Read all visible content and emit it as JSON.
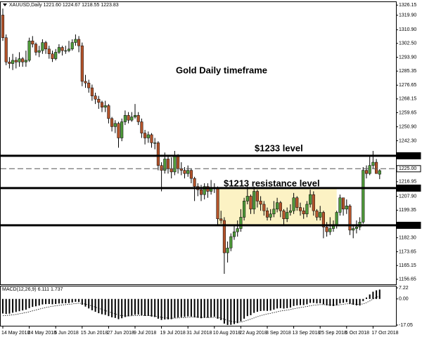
{
  "chart_data": [
    {
      "type": "candlestick",
      "title": "XAUUSD,Daily  1221.60 1224.67 1218.55 1223.83",
      "up_color": "#4f9a3a",
      "down_color": "#b4532a",
      "ylim": [
        1153.5,
        1328
      ],
      "yticks": [
        {
          "value": 1326.15,
          "label": "1326.15"
        },
        {
          "value": 1319.9,
          "label": "1319.90"
        },
        {
          "value": 1310.9,
          "label": "1310.90"
        },
        {
          "value": 1302.5,
          "label": "1302.50"
        },
        {
          "value": 1293.9,
          "label": "1293.90"
        },
        {
          "value": 1285.35,
          "label": "1285.35"
        },
        {
          "value": 1276.65,
          "label": "1276.65"
        },
        {
          "value": 1268.15,
          "label": "1268.15"
        },
        {
          "value": 1259.65,
          "label": "1259.65"
        },
        {
          "value": 1250.9,
          "label": "1250.90"
        },
        {
          "value": 1242.3,
          "label": "1242.30"
        },
        {
          "value": 1216.95,
          "label": "1216.95"
        },
        {
          "value": 1207.9,
          "label": "1207.90"
        },
        {
          "value": 1199.35,
          "label": "1199.35"
        },
        {
          "value": 1182.3,
          "label": "1182.30"
        },
        {
          "value": 1173.65,
          "label": "1173.65"
        },
        {
          "value": 1165.15,
          "label": "1165.15"
        },
        {
          "value": 1156.65,
          "label": "1156.65"
        }
      ],
      "hlines": [
        {
          "value": 1233,
          "label": "1233.00",
          "style": "solid"
        },
        {
          "value": 1225,
          "label": "1225.00",
          "style": "dashed"
        },
        {
          "value": 1213,
          "label": "1213.00",
          "style": "solid"
        },
        {
          "value": 1190,
          "label": "1190.00",
          "style": "solid"
        }
      ],
      "annotations": [
        "Gold Daily timeframe",
        "$1233 level",
        "$1213 resistance level"
      ],
      "categories": [
        "14 May 2018",
        null,
        null,
        null,
        null,
        null,
        null,
        null,
        "24 May 2018",
        null,
        null,
        null,
        null,
        null,
        null,
        null,
        "5 Jun 2018",
        null,
        null,
        null,
        null,
        null,
        null,
        null,
        "15 Jun 2018",
        null,
        null,
        null,
        null,
        null,
        null,
        null,
        "27 Jun 2018",
        null,
        null,
        null,
        null,
        null,
        null,
        null,
        "9 Jul 2018",
        null,
        null,
        null,
        null,
        null,
        null,
        null,
        "19 Jul 2018",
        null,
        null,
        null,
        null,
        null,
        null,
        null,
        "31 Jul 2018",
        null,
        null,
        null,
        null,
        null,
        null,
        null,
        "10 Aug 2018",
        null,
        null,
        null,
        null,
        null,
        null,
        null,
        "22 Aug 2018",
        null,
        null,
        null,
        null,
        null,
        null,
        null,
        "3 Sep 2018",
        null,
        null,
        null,
        null,
        null,
        null,
        null,
        "13 Sep 2018",
        null,
        null,
        null,
        null,
        null,
        null,
        null,
        "25 Sep 2018",
        null,
        null,
        null,
        null,
        null,
        null,
        null,
        "5 Oct 2018",
        null,
        null,
        null,
        null,
        null,
        null,
        null,
        "17 Oct 2018",
        null,
        null
      ],
      "open": [
        1320,
        1306,
        1291,
        1290,
        1292,
        1291,
        1293,
        1291,
        1292,
        1304,
        1302,
        1297,
        1298,
        1303,
        1299,
        1296,
        1293,
        1297,
        1300,
        1298,
        1298,
        1299,
        1303,
        1305,
        1301,
        1279,
        1278,
        1275,
        1270,
        1268,
        1266,
        1263,
        1264,
        1256,
        1251,
        1253,
        1244,
        1254,
        1258,
        1255,
        1257,
        1258,
        1254,
        1247,
        1244,
        1246,
        1241,
        1241,
        1227,
        1224,
        1231,
        1225,
        1223,
        1233,
        1225,
        1224,
        1222,
        1224,
        1219,
        1214,
        1212,
        1209,
        1214,
        1211,
        1213,
        1213,
        1194,
        1193,
        1173,
        1176,
        1183,
        1186,
        1188,
        1195,
        1205,
        1208,
        1200,
        1211,
        1205,
        1203,
        1199,
        1195,
        1197,
        1200,
        1204,
        1199,
        1194,
        1198,
        1199,
        1207,
        1201,
        1199,
        1197,
        1203,
        1209,
        1199,
        1195,
        1198,
        1189,
        1186,
        1188,
        1190,
        1198,
        1207,
        1200,
        1202,
        1187,
        1188,
        1189,
        1192,
        1224,
        1222,
        1227,
        1229,
        1221.6
      ],
      "high": [
        1324,
        1308,
        1294,
        1296,
        1294,
        1297,
        1294,
        1298,
        1306,
        1307,
        1303,
        1301,
        1305,
        1304,
        1301,
        1298,
        1299,
        1302,
        1301,
        1301,
        1304,
        1305,
        1308,
        1307,
        1303,
        1283,
        1280,
        1277,
        1272,
        1270,
        1267,
        1267,
        1265,
        1257,
        1255,
        1254,
        1256,
        1261,
        1260,
        1260,
        1265,
        1260,
        1256,
        1249,
        1248,
        1247,
        1244,
        1242,
        1229,
        1235,
        1233,
        1232,
        1236,
        1234,
        1229,
        1226,
        1227,
        1225,
        1220,
        1216,
        1215,
        1216,
        1216,
        1218,
        1216,
        1214,
        1199,
        1195,
        1180,
        1185,
        1190,
        1193,
        1200,
        1207,
        1214,
        1209,
        1214,
        1212,
        1208,
        1205,
        1201,
        1200,
        1205,
        1207,
        1205,
        1200,
        1201,
        1203,
        1210,
        1208,
        1204,
        1201,
        1205,
        1212,
        1211,
        1200,
        1202,
        1199,
        1192,
        1195,
        1193,
        1199,
        1209,
        1207,
        1206,
        1203,
        1190,
        1193,
        1195,
        1226,
        1227,
        1233,
        1236,
        1231,
        1224.67
      ],
      "low": [
        1304,
        1289,
        1287,
        1286,
        1287,
        1288,
        1288,
        1288,
        1291,
        1300,
        1295,
        1294,
        1296,
        1296,
        1293,
        1291,
        1292,
        1296,
        1295,
        1296,
        1297,
        1298,
        1301,
        1297,
        1276,
        1275,
        1272,
        1267,
        1265,
        1262,
        1260,
        1260,
        1253,
        1248,
        1247,
        1238,
        1242,
        1252,
        1253,
        1254,
        1256,
        1252,
        1244,
        1240,
        1241,
        1238,
        1237,
        1224,
        1211,
        1222,
        1222,
        1219,
        1221,
        1222,
        1221,
        1219,
        1220,
        1216,
        1205,
        1208,
        1205,
        1206,
        1207,
        1209,
        1210,
        1190,
        1191,
        1160,
        1167,
        1174,
        1181,
        1183,
        1186,
        1193,
        1203,
        1197,
        1197,
        1201,
        1199,
        1196,
        1193,
        1193,
        1195,
        1198,
        1195,
        1190,
        1192,
        1196,
        1197,
        1199,
        1196,
        1194,
        1195,
        1201,
        1196,
        1193,
        1193,
        1182,
        1183,
        1184,
        1186,
        1188,
        1196,
        1196,
        1197,
        1184,
        1182,
        1185,
        1187,
        1191,
        1219,
        1221,
        1225,
        1222,
        1218.55
      ],
      "close": [
        1306,
        1291,
        1290,
        1292,
        1291,
        1293,
        1291,
        1292,
        1304,
        1302,
        1297,
        1298,
        1303,
        1299,
        1296,
        1293,
        1297,
        1300,
        1298,
        1298,
        1299,
        1303,
        1305,
        1301,
        1279,
        1278,
        1275,
        1270,
        1268,
        1266,
        1263,
        1264,
        1256,
        1251,
        1253,
        1244,
        1254,
        1258,
        1255,
        1257,
        1258,
        1254,
        1247,
        1244,
        1246,
        1241,
        1241,
        1227,
        1224,
        1231,
        1225,
        1223,
        1233,
        1225,
        1224,
        1222,
        1224,
        1219,
        1214,
        1212,
        1209,
        1214,
        1211,
        1213,
        1213,
        1194,
        1193,
        1173,
        1176,
        1183,
        1186,
        1188,
        1195,
        1205,
        1208,
        1200,
        1211,
        1205,
        1203,
        1199,
        1195,
        1197,
        1200,
        1204,
        1199,
        1194,
        1198,
        1199,
        1207,
        1201,
        1199,
        1197,
        1203,
        1209,
        1199,
        1195,
        1198,
        1189,
        1186,
        1188,
        1190,
        1198,
        1207,
        1200,
        1202,
        1187,
        1188,
        1189,
        1192,
        1224,
        1222,
        1227,
        1229,
        1222,
        1223.83
      ]
    },
    {
      "type": "macd",
      "title": "MACD(12,26,9) 6.111 1.737",
      "color": "#000000",
      "ylim": [
        -17.05,
        7.22
      ],
      "yticks": [
        7.22,
        {
          "value": 0,
          "label": "0.00"
        },
        -17.05
      ],
      "values": [
        -9.5,
        -9.8,
        -9.6,
        -9.0,
        -8.5,
        -8.0,
        -7.5,
        -7.0,
        -6.0,
        -5.2,
        -4.8,
        -4.3,
        -3.6,
        -3.4,
        -3.3,
        -3.5,
        -3.3,
        -3.0,
        -2.9,
        -2.8,
        -2.7,
        -2.3,
        -1.9,
        -2.0,
        -3.8,
        -5.0,
        -6.2,
        -7.4,
        -8.4,
        -9.3,
        -10.0,
        -10.4,
        -11.2,
        -12.0,
        -12.4,
        -13.2,
        -12.6,
        -11.8,
        -11.3,
        -10.8,
        -10.3,
        -10.2,
        -10.6,
        -11.0,
        -11.1,
        -11.5,
        -11.8,
        -12.9,
        -13.7,
        -13.4,
        -13.3,
        -13.2,
        -12.3,
        -12.1,
        -11.9,
        -11.7,
        -11.4,
        -11.5,
        -12.0,
        -12.3,
        -12.6,
        -12.3,
        -12.2,
        -11.9,
        -11.6,
        -12.9,
        -13.8,
        -16.1,
        -17.0,
        -16.9,
        -16.4,
        -15.8,
        -14.6,
        -12.9,
        -11.2,
        -10.6,
        -9.1,
        -8.4,
        -7.9,
        -7.7,
        -7.8,
        -7.6,
        -7.0,
        -6.2,
        -6.0,
        -6.3,
        -6.0,
        -5.6,
        -4.6,
        -4.2,
        -4.0,
        -4.0,
        -3.5,
        -2.6,
        -2.6,
        -2.9,
        -2.8,
        -3.5,
        -4.2,
        -4.5,
        -4.6,
        -4.0,
        -2.9,
        -2.5,
        -2.1,
        -3.1,
        -3.8,
        -4.2,
        -4.3,
        -1.4,
        0.9,
        2.9,
        4.7,
        5.6,
        6.111
      ],
      "signal": [
        -11.0,
        -10.8,
        -10.6,
        -10.4,
        -10.1,
        -9.7,
        -9.3,
        -8.9,
        -8.4,
        -7.8,
        -7.2,
        -6.7,
        -6.1,
        -5.6,
        -5.2,
        -4.8,
        -4.5,
        -4.2,
        -3.9,
        -3.7,
        -3.5,
        -3.3,
        -3.0,
        -2.8,
        -3.0,
        -3.4,
        -3.9,
        -4.6,
        -5.3,
        -6.1,
        -6.9,
        -7.6,
        -8.3,
        -9.1,
        -9.8,
        -10.5,
        -10.9,
        -11.1,
        -11.1,
        -11.0,
        -10.9,
        -10.8,
        -10.7,
        -10.8,
        -10.8,
        -11.0,
        -11.2,
        -11.6,
        -12.0,
        -12.3,
        -12.5,
        -12.6,
        -12.5,
        -12.4,
        -12.3,
        -12.2,
        -12.0,
        -11.9,
        -11.9,
        -11.9,
        -12.0,
        -12.1,
        -12.1,
        -12.1,
        -12.0,
        -12.2,
        -12.5,
        -13.2,
        -14.0,
        -14.6,
        -15.0,
        -15.2,
        -15.1,
        -14.6,
        -13.9,
        -13.2,
        -12.4,
        -11.6,
        -10.9,
        -10.3,
        -9.8,
        -9.4,
        -8.9,
        -8.4,
        -7.9,
        -7.6,
        -7.3,
        -6.9,
        -6.4,
        -6.0,
        -5.6,
        -5.3,
        -4.9,
        -4.5,
        -4.1,
        -3.9,
        -3.7,
        -3.7,
        -3.8,
        -3.9,
        -4.1,
        -4.1,
        -3.8,
        -3.5,
        -3.2,
        -3.2,
        -3.3,
        -3.5,
        -3.6,
        -3.2,
        -2.4,
        -1.3,
        -0.1,
        1.1,
        1.737
      ]
    }
  ]
}
